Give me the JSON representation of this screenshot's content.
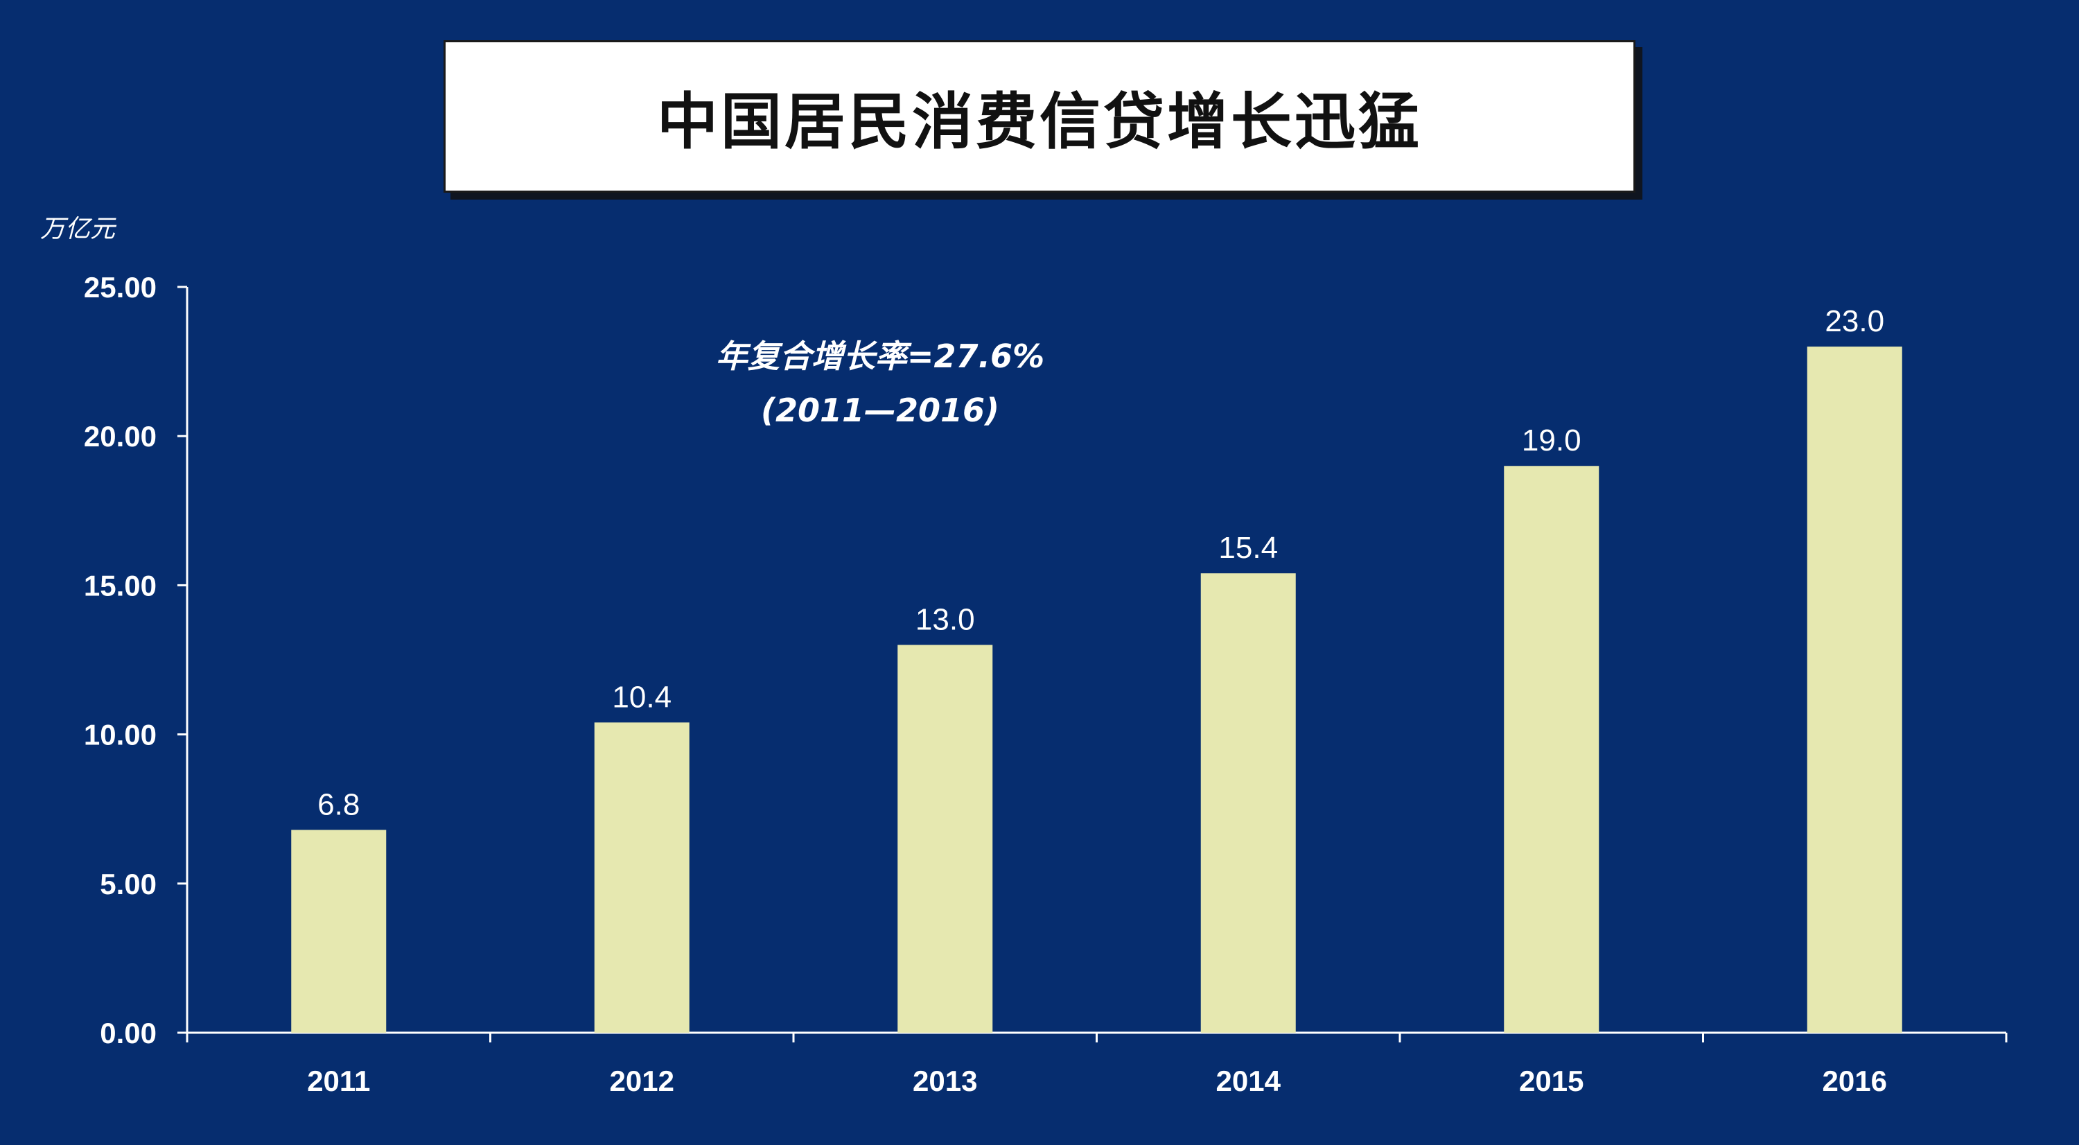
{
  "title": "中国居民消费信贷增长迅猛",
  "colors": {
    "background": "#062D6F",
    "bar": "#E6E8B0",
    "axis": "#FFFFFF",
    "text": "#FFFFFF",
    "title_box": "#FFFFFF",
    "title_text": "#111111"
  },
  "chart_data": {
    "type": "bar",
    "title": "中国居民消费信贷增长迅猛",
    "ylabel": "万亿元",
    "xlabel": "",
    "ylim": [
      0,
      25
    ],
    "yticks": [
      "0.00",
      "5.00",
      "10.00",
      "15.00",
      "20.00",
      "25.00"
    ],
    "categories": [
      "2011",
      "2012",
      "2013",
      "2014",
      "2015",
      "2016"
    ],
    "values": [
      6.8,
      10.4,
      13.0,
      15.4,
      19.0,
      23.0
    ],
    "data_labels": [
      "6.8",
      "10.4",
      "13.0",
      "15.4",
      "19.0",
      "23.0"
    ],
    "annotation": {
      "line1": "年复合增长率=27.6%",
      "line2": "(2011—2016)"
    },
    "grid": false,
    "legend": "none"
  }
}
